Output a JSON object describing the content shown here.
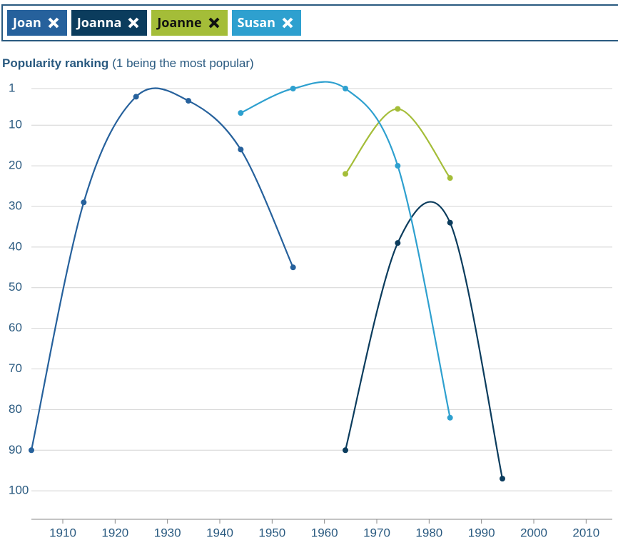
{
  "chart_data": {
    "type": "line",
    "title": "Popularity ranking",
    "subtitle": "(1 being the most popular)",
    "series": [
      {
        "name": "Joan",
        "color": "#26619c",
        "x": [
          1904,
          1914,
          1924,
          1934,
          1944,
          1954
        ],
        "values": [
          90,
          29,
          3,
          4,
          16,
          45
        ]
      },
      {
        "name": "Joanna",
        "color": "#0b3c5d",
        "x": [
          1964,
          1974,
          1984,
          1994
        ],
        "values": [
          90,
          39,
          34,
          97
        ]
      },
      {
        "name": "Joanne",
        "color": "#a4bd38",
        "x": [
          1964,
          1974,
          1984
        ],
        "values": [
          22,
          6,
          23
        ]
      },
      {
        "name": "Susan",
        "color": "#2ea0cf",
        "x": [
          1944,
          1954,
          1964,
          1974,
          1984
        ],
        "values": [
          7,
          1,
          1,
          20,
          82
        ]
      }
    ],
    "xlim": [
      1904,
      2015
    ],
    "xticks": [
      1910,
      1920,
      1930,
      1940,
      1950,
      1960,
      1970,
      1980,
      1990,
      2000,
      2010
    ],
    "ylim": [
      1,
      107
    ],
    "yticks": [
      1,
      10,
      20,
      30,
      40,
      50,
      60,
      70,
      80,
      90,
      100
    ],
    "y_reversed": true,
    "grid": true
  }
}
